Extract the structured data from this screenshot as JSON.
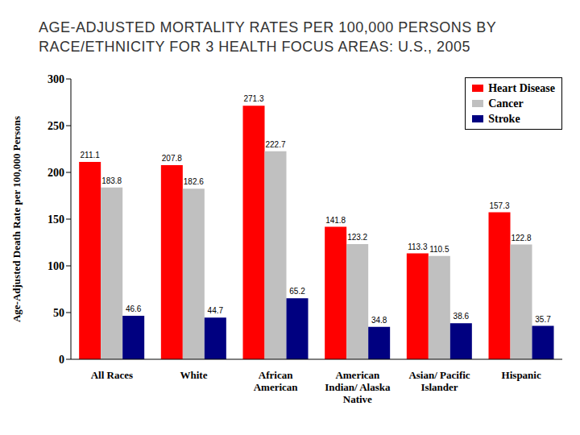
{
  "chart_data": {
    "type": "bar",
    "title": "AGE-ADJUSTED MORTALITY RATES PER 100,000 PERSONS BY RACE/ETHNICITY FOR 3 HEALTH FOCUS AREAS: U.S., 2005",
    "y_label": "Age-Adjusted Death Rate per 100,000 Persons",
    "categories": [
      "All Races",
      "White",
      "African American",
      "American Indian/ Alaska Native",
      "Asian/ Pacific Islander",
      "Hispanic"
    ],
    "series": [
      {
        "name": "Heart Disease",
        "color": "#ff0000",
        "values": [
          211.1,
          207.8,
          271.3,
          141.8,
          113.3,
          157.3
        ]
      },
      {
        "name": "Cancer",
        "color": "#c0c0c0",
        "values": [
          183.8,
          182.6,
          222.7,
          123.2,
          110.5,
          122.8
        ]
      },
      {
        "name": "Stroke",
        "color": "#000080",
        "values": [
          46.6,
          44.7,
          65.2,
          34.8,
          38.6,
          35.7
        ]
      }
    ],
    "ylim": [
      0,
      300
    ],
    "yticks": [
      0,
      50,
      100,
      150,
      200,
      250,
      300
    ],
    "data_labels": true,
    "legend": "upper right",
    "grid": false
  }
}
